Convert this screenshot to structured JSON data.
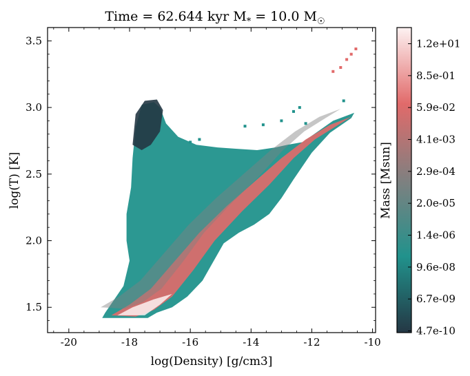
{
  "chart_data": {
    "type": "heatmap",
    "title": "Time = 62.644 kyr    M",
    "title_star": "*",
    "title_mid": " = 10.0 M",
    "title_sun": "☉",
    "xlabel": "log(Density) [g/cm3]",
    "ylabel": "log(T) [K]",
    "xlim": [
      -20.7,
      -9.9
    ],
    "ylim": [
      1.31,
      3.6
    ],
    "xticks": [
      -20,
      -18,
      -16,
      -14,
      -12,
      -10
    ],
    "yticks": [
      1.5,
      2.0,
      2.5,
      3.0,
      3.5
    ],
    "xtick_labels": [
      "-20",
      "-18",
      "-16",
      "-14",
      "-12",
      "-10"
    ],
    "ytick_labels": [
      "1.5",
      "2.0",
      "2.5",
      "3.0",
      "3.5"
    ],
    "colorbar": {
      "label": "Mass [Msun]",
      "scale": "log",
      "tick_labels": [
        "4.7e-10",
        "6.7e-09",
        "9.6e-08",
        "1.4e-06",
        "2.0e-05",
        "2.9e-04",
        "4.1e-03",
        "5.9e-02",
        "8.5e-01",
        "1.2e+01"
      ],
      "colormap": [
        "#243744",
        "#21928c",
        "#808080",
        "#e16a6a",
        "#fdf2f2"
      ]
    },
    "regions": [
      {
        "name": "gas-distribution",
        "boundary": [
          [
            -18.9,
            1.42
          ],
          [
            -17.4,
            1.42
          ],
          [
            -17.1,
            1.46
          ],
          [
            -16.6,
            1.5
          ],
          [
            -16.1,
            1.58
          ],
          [
            -15.6,
            1.7
          ],
          [
            -15.2,
            1.86
          ],
          [
            -14.9,
            1.98
          ],
          [
            -14.4,
            2.06
          ],
          [
            -13.9,
            2.12
          ],
          [
            -13.4,
            2.2
          ],
          [
            -13.0,
            2.32
          ],
          [
            -12.6,
            2.46
          ],
          [
            -12.0,
            2.66
          ],
          [
            -11.4,
            2.81
          ],
          [
            -10.7,
            2.92
          ],
          [
            -10.6,
            2.96
          ],
          [
            -11.3,
            2.9
          ],
          [
            -11.8,
            2.82
          ],
          [
            -12.3,
            2.74
          ],
          [
            -12.8,
            2.72
          ],
          [
            -13.2,
            2.7
          ],
          [
            -13.8,
            2.68
          ],
          [
            -14.5,
            2.69
          ],
          [
            -15.1,
            2.7
          ],
          [
            -15.8,
            2.72
          ],
          [
            -16.4,
            2.78
          ],
          [
            -16.8,
            2.88
          ],
          [
            -17.0,
            3.0
          ],
          [
            -17.2,
            3.04
          ],
          [
            -17.6,
            3.02
          ],
          [
            -17.8,
            2.85
          ],
          [
            -17.9,
            2.62
          ],
          [
            -17.95,
            2.4
          ],
          [
            -18.1,
            2.2
          ],
          [
            -18.1,
            2.0
          ],
          [
            -18.0,
            1.85
          ],
          [
            -18.2,
            1.66
          ],
          [
            -18.5,
            1.56
          ],
          [
            -18.8,
            1.46
          ]
        ]
      },
      {
        "name": "high-mass-ridge",
        "boundary": [
          [
            -18.6,
            1.44
          ],
          [
            -17.8,
            1.43
          ],
          [
            -17.2,
            1.48
          ],
          [
            -16.6,
            1.58
          ],
          [
            -15.9,
            1.78
          ],
          [
            -15.2,
            2.0
          ],
          [
            -14.3,
            2.22
          ],
          [
            -13.4,
            2.42
          ],
          [
            -12.6,
            2.62
          ],
          [
            -11.9,
            2.76
          ],
          [
            -11.2,
            2.86
          ],
          [
            -10.7,
            2.93
          ],
          [
            -11.4,
            2.87
          ],
          [
            -12.2,
            2.76
          ],
          [
            -13.0,
            2.62
          ],
          [
            -13.9,
            2.44
          ],
          [
            -14.8,
            2.26
          ],
          [
            -15.7,
            2.06
          ],
          [
            -16.5,
            1.85
          ],
          [
            -17.3,
            1.64
          ],
          [
            -18.0,
            1.52
          ]
        ]
      },
      {
        "name": "peak-mass-core",
        "boundary": [
          [
            -18.4,
            1.44
          ],
          [
            -17.5,
            1.44
          ],
          [
            -17.0,
            1.52
          ],
          [
            -16.6,
            1.6
          ],
          [
            -17.2,
            1.56
          ],
          [
            -17.9,
            1.5
          ]
        ]
      },
      {
        "name": "cool-upper-hook",
        "boundary": [
          [
            -17.9,
            2.72
          ],
          [
            -17.8,
            2.95
          ],
          [
            -17.5,
            3.05
          ],
          [
            -17.1,
            3.06
          ],
          [
            -16.9,
            2.98
          ],
          [
            -17.0,
            2.82
          ],
          [
            -17.3,
            2.72
          ],
          [
            -17.6,
            2.68
          ]
        ]
      }
    ],
    "outlier_points": [
      [
        -10.55,
        3.44
      ],
      [
        -10.7,
        3.4
      ],
      [
        -10.85,
        3.36
      ],
      [
        -11.05,
        3.3
      ],
      [
        -11.3,
        3.27
      ],
      [
        -10.95,
        3.05
      ],
      [
        -12.4,
        3.0
      ],
      [
        -12.6,
        2.97
      ],
      [
        -12.2,
        2.88
      ],
      [
        -13.0,
        2.9
      ],
      [
        -13.6,
        2.87
      ],
      [
        -14.2,
        2.86
      ],
      [
        -15.7,
        2.76
      ],
      [
        -16.0,
        2.74
      ]
    ]
  }
}
